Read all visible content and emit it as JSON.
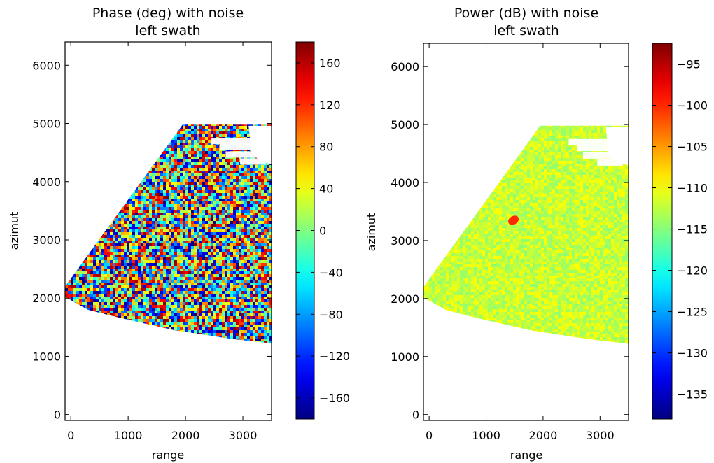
{
  "chart_data": [
    {
      "type": "heatmap",
      "title": "Phase (deg) with noise",
      "subtitle": "left swath",
      "xlabel": "range",
      "ylabel": "azimut",
      "xlim": [
        -100,
        3500
      ],
      "ylim": [
        -100,
        6400
      ],
      "xticks": [
        0,
        1000,
        2000,
        3000
      ],
      "yticks": [
        0,
        1000,
        2000,
        3000,
        4000,
        5000,
        6000
      ],
      "colorbar": {
        "colormap": "jet",
        "range": [
          -180,
          180
        ],
        "ticks": [
          160,
          120,
          80,
          40,
          0,
          -40,
          -80,
          -120,
          -160
        ]
      },
      "data_footprint": {
        "description_points": [
          [
            -100,
            2200
          ],
          [
            1950,
            4980
          ],
          [
            3500,
            4980
          ],
          [
            3500,
            1220
          ],
          [
            2800,
            1300
          ],
          [
            1800,
            1450
          ],
          [
            900,
            1650
          ],
          [
            300,
            1800
          ],
          [
            -100,
            2020
          ]
        ],
        "noise": "uniform random phase across colormap"
      }
    },
    {
      "type": "heatmap",
      "title": "Power (dB) with noise",
      "subtitle": "left swath",
      "xlabel": "range",
      "ylabel": "azimut",
      "xlim": [
        -100,
        3500
      ],
      "ylim": [
        -100,
        6400
      ],
      "xticks": [
        0,
        1000,
        2000,
        3000
      ],
      "yticks": [
        0,
        1000,
        2000,
        3000,
        4000,
        5000,
        6000
      ],
      "colorbar": {
        "colormap": "jet",
        "range": [
          -138,
          -92.5
        ],
        "ticks": [
          -95,
          -100,
          -105,
          -110,
          -115,
          -120,
          -125,
          -130,
          -135
        ]
      },
      "data_footprint": {
        "description_points": [
          [
            -100,
            2200
          ],
          [
            1950,
            4980
          ],
          [
            3500,
            4980
          ],
          [
            3500,
            1220
          ],
          [
            2800,
            1300
          ],
          [
            1800,
            1450
          ],
          [
            900,
            1650
          ],
          [
            300,
            1800
          ],
          [
            -100,
            2020
          ]
        ],
        "background_level": -112,
        "hotspot": {
          "center": [
            1480,
            3350
          ],
          "level": -100
        }
      }
    }
  ]
}
